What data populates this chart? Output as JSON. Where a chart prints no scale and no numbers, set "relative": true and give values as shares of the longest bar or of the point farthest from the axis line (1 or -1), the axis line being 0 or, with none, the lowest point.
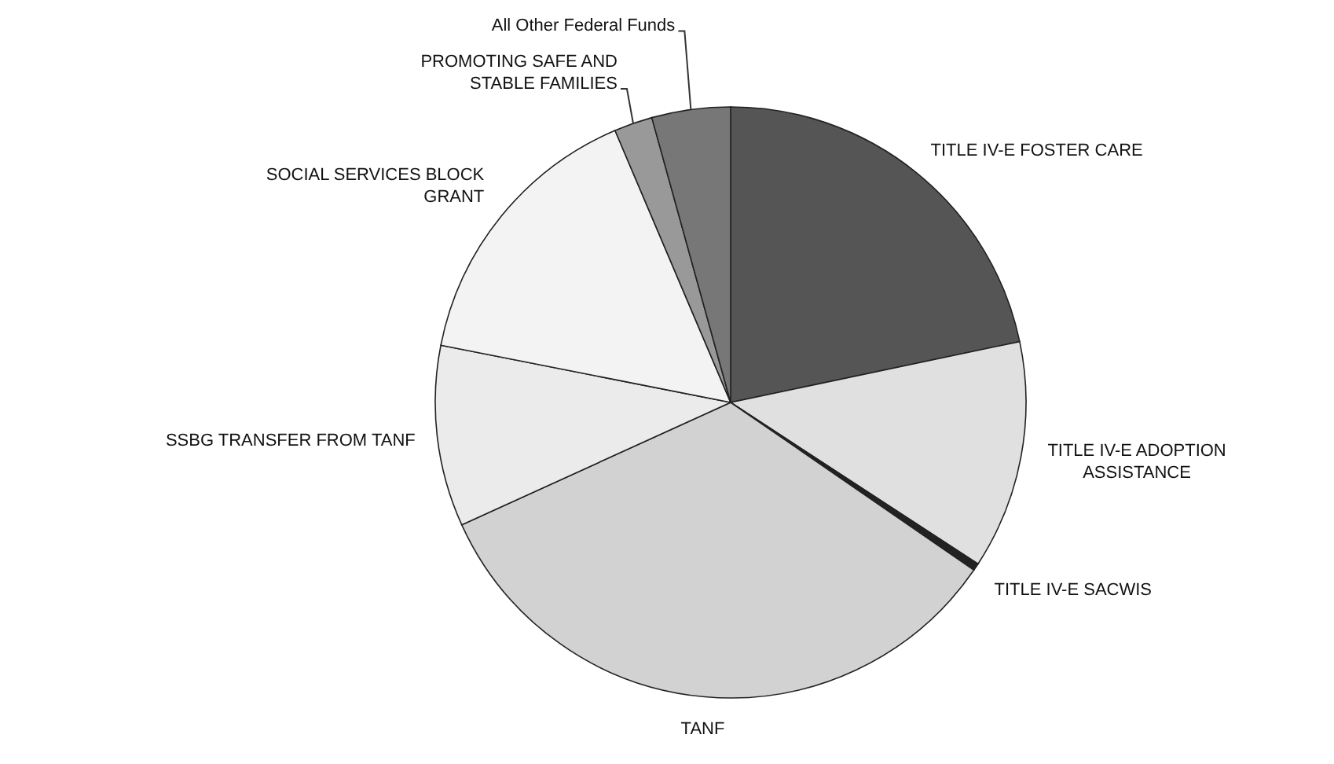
{
  "chart_data": {
    "type": "pie",
    "relative": true,
    "categories": [
      "TITLE IV-E FOSTER CARE",
      "TITLE IV-E ADOPTION\nASSISTANCE",
      "TITLE IV-E SACWIS",
      "TANF",
      "SSBG TRANSFER FROM TANF",
      "SOCIAL SERVICES BLOCK\nGRANT",
      "PROMOTING SAFE AND\nSTABLE FAMILIES",
      "All Other Federal Funds"
    ],
    "values": [
      21.7,
      12.5,
      0.4,
      33.6,
      9.9,
      15.5,
      2.1,
      4.3
    ],
    "colors": [
      "#555555",
      "#e0e0e0",
      "#222222",
      "#d2d2d2",
      "#ebebeb",
      "#f3f3f3",
      "#999999",
      "#777777"
    ]
  }
}
